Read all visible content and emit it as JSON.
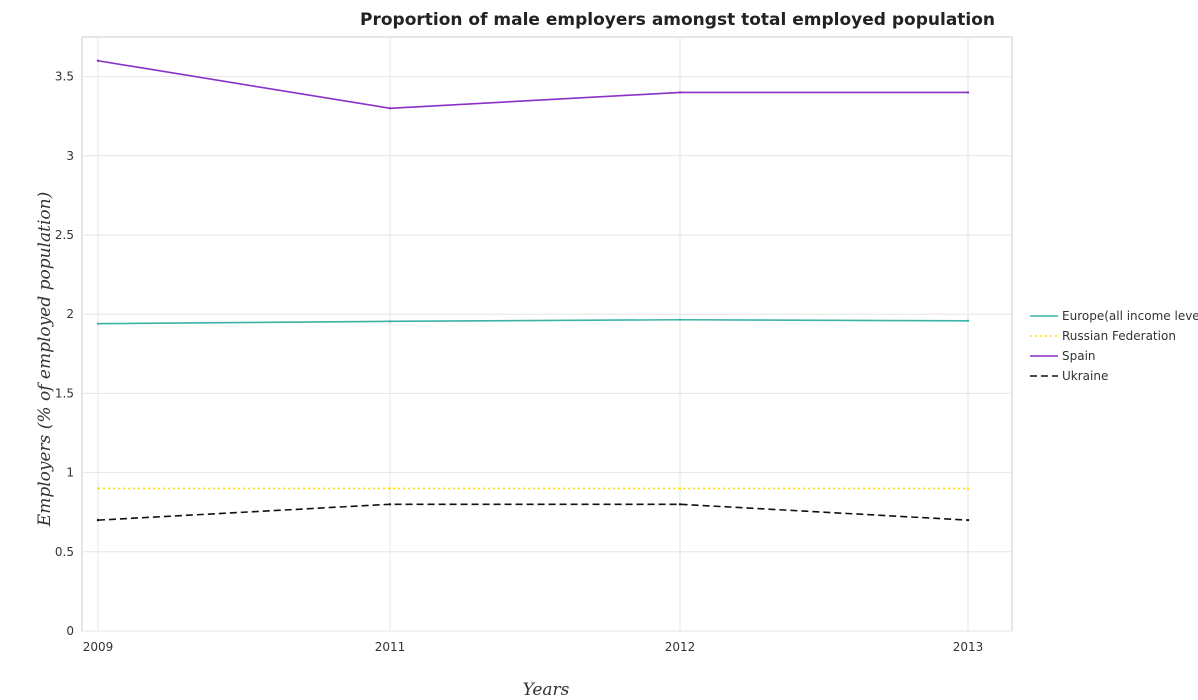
{
  "chart_data": {
    "type": "line",
    "title": "Proportion of male employers amongst total employed population",
    "xlabel": "Years",
    "ylabel": "Employers (% of employed population)",
    "categories": [
      "2009",
      "2011",
      "2012",
      "2013"
    ],
    "ylim": [
      0,
      3.75
    ],
    "yticks": [
      0,
      0.5,
      1,
      1.5,
      2,
      2.5,
      3,
      3.5
    ],
    "ytick_labels": [
      "0",
      "0.5",
      "1",
      "1.5",
      "2",
      "2.5",
      "3",
      "3.5"
    ],
    "grid": true,
    "legend_position": "right",
    "series": [
      {
        "name": "Europe(all income levels)",
        "color": "#3cb3a4",
        "dash": "solid",
        "values": [
          1.94,
          1.955,
          1.965,
          1.958
        ]
      },
      {
        "name": "Russian Federation",
        "color": "#ffe000",
        "dash": "dotted",
        "values": [
          0.9,
          0.9,
          0.9,
          0.9
        ]
      },
      {
        "name": "Spain",
        "color": "#8b2fc9",
        "dash": "solid",
        "values": [
          3.6,
          3.3,
          3.4,
          3.4
        ]
      },
      {
        "name": "Ukraine",
        "color": "#111111",
        "dash": "dashed",
        "values": [
          0.7,
          0.8,
          0.8,
          0.7
        ]
      }
    ]
  }
}
